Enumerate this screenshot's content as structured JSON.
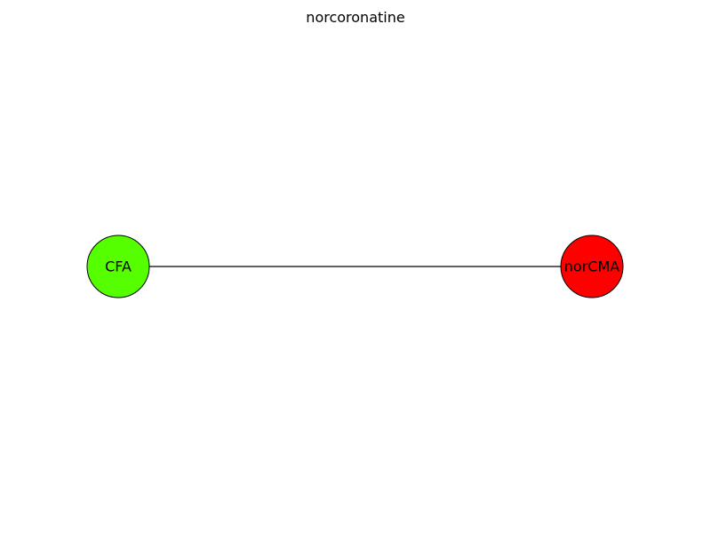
{
  "title": "norcoronatine",
  "nodes": [
    {
      "id": "CFA",
      "label": "CFA",
      "color": "#55ff00"
    },
    {
      "id": "norCMA",
      "label": "norCMA",
      "color": "#ff0000"
    }
  ],
  "edges": [
    {
      "source": "CFA",
      "target": "norCMA"
    }
  ],
  "colors": {
    "edge": "#000000",
    "node_border": "#000000",
    "background": "#ffffff"
  }
}
